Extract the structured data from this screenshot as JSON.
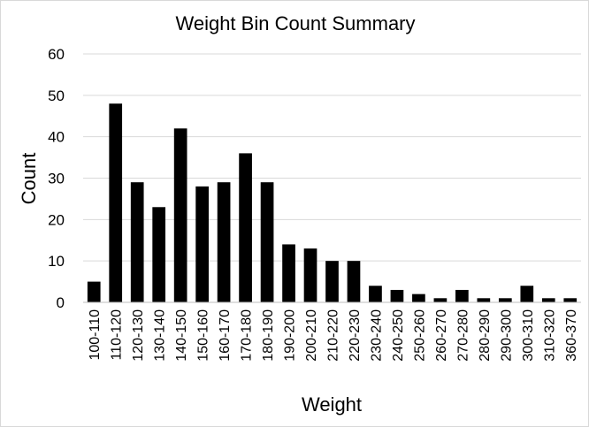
{
  "chart_data": {
    "type": "bar",
    "title": "Weight Bin Count Summary",
    "xlabel": "Weight",
    "ylabel": "Count",
    "ylim": [
      0,
      60
    ],
    "yticks": [
      0,
      10,
      20,
      30,
      40,
      50,
      60
    ],
    "grid": true,
    "legend": "none",
    "bar_color": "#000000",
    "categories": [
      "100-110",
      "110-120",
      "120-130",
      "130-140",
      "140-150",
      "150-160",
      "160-170",
      "170-180",
      "180-190",
      "190-200",
      "200-210",
      "210-220",
      "220-230",
      "230-240",
      "240-250",
      "250-260",
      "260-270",
      "270-280",
      "280-290",
      "290-300",
      "300-310",
      "310-320",
      "360-370"
    ],
    "values": [
      5,
      48,
      29,
      23,
      42,
      28,
      29,
      36,
      29,
      14,
      13,
      10,
      10,
      4,
      3,
      2,
      1,
      3,
      1,
      1,
      4,
      1,
      1
    ]
  }
}
